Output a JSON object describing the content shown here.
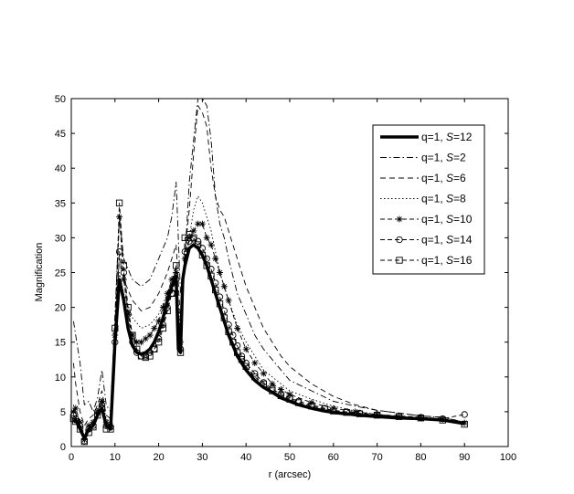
{
  "chart_data": {
    "type": "line",
    "xlabel": "r (arcsec)",
    "ylabel": "Magnification",
    "xlim": [
      0,
      100
    ],
    "ylim": [
      0,
      50
    ],
    "xticks": [
      0,
      10,
      20,
      30,
      40,
      50,
      60,
      70,
      80,
      90,
      100
    ],
    "yticks": [
      0,
      5,
      10,
      15,
      20,
      25,
      30,
      35,
      40,
      45,
      50
    ],
    "xtick_labels": [
      "0",
      "10",
      "20",
      "30",
      "40",
      "50",
      "60",
      "70",
      "80",
      "90",
      "100"
    ],
    "ytick_labels": [
      "0",
      "5",
      "10",
      "15",
      "20",
      "25",
      "30",
      "35",
      "40",
      "45",
      "50"
    ],
    "legend_position": "top-right",
    "grid": false,
    "series": [
      {
        "name": "q=1, S=12",
        "style": "thick-solid",
        "x": [
          0.5,
          1,
          2,
          3,
          4,
          5,
          6,
          7,
          8,
          9,
          10,
          11,
          12,
          13,
          14,
          15,
          16,
          17,
          18,
          19,
          20,
          21,
          22,
          23,
          24,
          24.5,
          25,
          25.5,
          26,
          27,
          28,
          29,
          30,
          31,
          32,
          33,
          34,
          35,
          36,
          37,
          38,
          39,
          40,
          42,
          44,
          46,
          48,
          50,
          52,
          55,
          58,
          60,
          63,
          66,
          70,
          75,
          80,
          85,
          90
        ],
        "y": [
          3.5,
          3.8,
          2.5,
          1.2,
          2.5,
          3,
          4.5,
          5.5,
          3,
          2.5,
          15,
          24,
          21,
          17,
          14.5,
          13.5,
          13.3,
          13.5,
          14,
          15,
          16.5,
          18.5,
          21,
          23,
          24.5,
          14,
          13.5,
          24,
          26,
          28.5,
          29,
          28.5,
          27.5,
          26,
          24,
          22,
          20,
          18,
          16,
          14.5,
          13,
          12,
          11,
          9.5,
          8.5,
          7.8,
          7,
          6.5,
          6,
          5.5,
          5.1,
          4.9,
          4.7,
          4.5,
          4.3,
          4.1,
          4,
          3.8,
          3.3
        ]
      },
      {
        "name": "q=1, S=2",
        "style": "dash-dot",
        "x": [
          0.5,
          1,
          2,
          3,
          4,
          5,
          6,
          7,
          8,
          9,
          10,
          11,
          12,
          14,
          16,
          18,
          20,
          22,
          23,
          24,
          25,
          26,
          27,
          28,
          29,
          30,
          31,
          32,
          33,
          34,
          35,
          36,
          38,
          40,
          42,
          44,
          46,
          48,
          50,
          55,
          60,
          65,
          70,
          75,
          80,
          85,
          90
        ],
        "y": [
          18,
          16,
          12,
          6,
          6.5,
          5,
          7,
          11,
          6,
          5,
          19,
          33,
          27,
          24,
          23,
          24,
          27,
          30,
          33,
          38,
          22,
          27,
          38,
          44,
          52,
          50,
          49,
          44,
          36,
          32,
          30,
          27,
          22,
          19,
          16,
          14,
          12.5,
          11,
          9.5,
          8,
          6.5,
          5.8,
          5.2,
          4.8,
          4.4,
          4.2,
          3.5
        ]
      },
      {
        "name": "q=1, S=6",
        "style": "dashed",
        "x": [
          0.5,
          1,
          2,
          3,
          4,
          5,
          6,
          7,
          8,
          9,
          10,
          11,
          12,
          14,
          16,
          18,
          20,
          22,
          24,
          25,
          26,
          27,
          28,
          29,
          30,
          31,
          32,
          33,
          34,
          35,
          36,
          38,
          40,
          42,
          44,
          46,
          48,
          50,
          55,
          60,
          65,
          70,
          75,
          80,
          85,
          90
        ],
        "y": [
          12,
          9,
          5,
          3,
          4,
          4.5,
          6,
          8,
          4.5,
          4,
          17,
          27,
          24,
          21,
          19.5,
          20,
          22,
          25,
          29,
          18,
          28,
          34,
          42,
          49,
          48,
          46,
          40,
          36,
          34,
          33,
          31,
          27,
          23,
          20,
          17,
          15,
          13,
          11.5,
          9,
          7.2,
          6,
          5.2,
          4.8,
          4.4,
          4.2,
          3.5
        ]
      },
      {
        "name": "q=1, S=8",
        "style": "dotted",
        "x": [
          0.5,
          1,
          2,
          3,
          4,
          5,
          6,
          7,
          8,
          9,
          10,
          11,
          12,
          14,
          16,
          18,
          20,
          22,
          24,
          25,
          26,
          27,
          28,
          29,
          30,
          31,
          32,
          33,
          34,
          36,
          38,
          40,
          42,
          44,
          46,
          48,
          50,
          55,
          60,
          65,
          70,
          75,
          80,
          85,
          90
        ],
        "y": [
          6,
          5,
          3,
          1.5,
          3,
          3.5,
          5,
          7,
          4,
          3.5,
          16,
          25,
          22,
          18.5,
          17,
          17.5,
          19,
          22,
          26,
          16,
          26,
          30,
          34,
          36,
          35,
          33,
          31,
          28,
          25,
          21,
          17.5,
          15,
          13,
          11,
          10,
          9,
          8,
          6.8,
          5.8,
          5.1,
          4.6,
          4.3,
          4.1,
          3.9,
          3.5
        ]
      },
      {
        "name": "q=1, S=10",
        "style": "star",
        "x": [
          0.5,
          1,
          2,
          3,
          4,
          5,
          6,
          7,
          8,
          9,
          10,
          11,
          12,
          13,
          14,
          15,
          16,
          17,
          18,
          19,
          20,
          21,
          22,
          23,
          24,
          25,
          26,
          27,
          28,
          29,
          30,
          31,
          32,
          33,
          34,
          35,
          36,
          38,
          40,
          42,
          44,
          46,
          48,
          50,
          55,
          60,
          65,
          70,
          75,
          80,
          85,
          90
        ],
        "y": [
          5,
          5.5,
          3.5,
          1,
          3,
          3.5,
          5,
          6.5,
          3.5,
          3,
          16,
          33,
          24,
          19,
          16,
          15,
          15,
          15.5,
          16,
          17,
          18,
          20,
          22,
          24,
          25,
          15,
          27,
          30,
          31,
          32,
          32,
          30,
          29,
          27,
          25,
          23,
          21,
          17,
          14,
          12,
          10.5,
          9,
          8.2,
          7.5,
          6.3,
          5.5,
          5,
          4.6,
          4.3,
          4.1,
          3.9,
          3.4
        ]
      },
      {
        "name": "q=1, S=14",
        "style": "circle",
        "x": [
          0.5,
          1,
          2,
          3,
          4,
          5,
          6,
          7,
          8,
          9,
          10,
          11,
          12,
          13,
          14,
          15,
          16,
          17,
          18,
          19,
          20,
          21,
          22,
          23,
          24,
          25,
          26,
          27,
          28,
          29,
          30,
          31,
          32,
          33,
          34,
          35,
          36,
          37,
          38,
          39,
          40,
          42,
          44,
          46,
          48,
          50,
          52,
          55,
          58,
          60,
          63,
          66,
          70,
          75,
          80,
          85,
          90
        ],
        "y": [
          4.5,
          4,
          3,
          0.8,
          2.5,
          3,
          5,
          6,
          3,
          2.8,
          15,
          28,
          25,
          19,
          15,
          13.5,
          13,
          13,
          13.5,
          14,
          15.5,
          17.5,
          20,
          22,
          24,
          14,
          28,
          29.5,
          29.8,
          29.5,
          28.5,
          27,
          25.5,
          23.5,
          21.5,
          19.5,
          17.5,
          16,
          14.5,
          13,
          12,
          10.5,
          9.2,
          8.3,
          7.5,
          7,
          6.5,
          6,
          5.5,
          5.2,
          5,
          4.8,
          4.6,
          4.4,
          4.2,
          4,
          4.6
        ]
      },
      {
        "name": "q=1, S=16",
        "style": "square",
        "x": [
          0.5,
          1,
          2,
          3,
          4,
          5,
          6,
          7,
          8,
          9,
          10,
          11,
          12,
          13,
          14,
          15,
          16,
          17,
          18,
          19,
          20,
          21,
          22,
          23,
          24,
          25,
          26,
          27,
          28,
          29,
          30,
          31,
          32,
          33,
          34,
          35,
          36,
          37,
          38,
          39,
          40,
          42,
          44,
          46,
          48,
          50,
          52,
          55,
          58,
          60,
          63,
          66,
          70,
          75,
          80,
          85,
          90
        ],
        "y": [
          4,
          3.6,
          2.5,
          0.7,
          2,
          2.8,
          4.5,
          5.5,
          2.5,
          2.5,
          17,
          35,
          26,
          20,
          16,
          14,
          13,
          12.8,
          13,
          14,
          15,
          17,
          19.5,
          22,
          26,
          13.5,
          30,
          30.5,
          30,
          29,
          27.5,
          26,
          24.5,
          22.5,
          20.5,
          18.5,
          16.5,
          15,
          13.5,
          12.5,
          11.5,
          10,
          9,
          8,
          7.3,
          6.8,
          6.3,
          5.8,
          5.4,
          5.1,
          4.9,
          4.7,
          4.5,
          4.3,
          4.1,
          3.8,
          3.2
        ]
      }
    ]
  }
}
